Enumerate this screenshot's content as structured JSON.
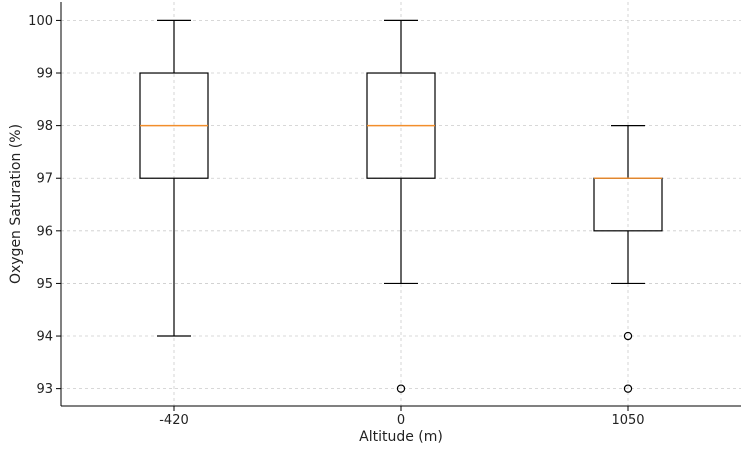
{
  "chart_data": {
    "type": "boxplot",
    "xlabel": "Altitude (m)",
    "ylabel": "Oxygen Saturation (%)",
    "categories": [
      "-420",
      "0",
      "1050"
    ],
    "ylim": [
      92.67,
      100.35
    ],
    "yticks": [
      93,
      94,
      95,
      96,
      97,
      98,
      99,
      100
    ],
    "grid": true,
    "boxes": [
      {
        "category": "-420",
        "whisker_low": 94,
        "q1": 97,
        "median": 98,
        "q3": 99,
        "whisker_high": 100,
        "outliers": []
      },
      {
        "category": "0",
        "whisker_low": 95,
        "q1": 97,
        "median": 98,
        "q3": 99,
        "whisker_high": 100,
        "outliers": [
          93
        ]
      },
      {
        "category": "1050",
        "whisker_low": 95,
        "q1": 96,
        "median": 97,
        "q3": 97,
        "whisker_high": 98,
        "outliers": [
          94,
          93
        ]
      }
    ],
    "colors": {
      "box": "#000000",
      "median": "#f28e2b",
      "grid": "#cccccc",
      "axis": "#000000"
    }
  }
}
